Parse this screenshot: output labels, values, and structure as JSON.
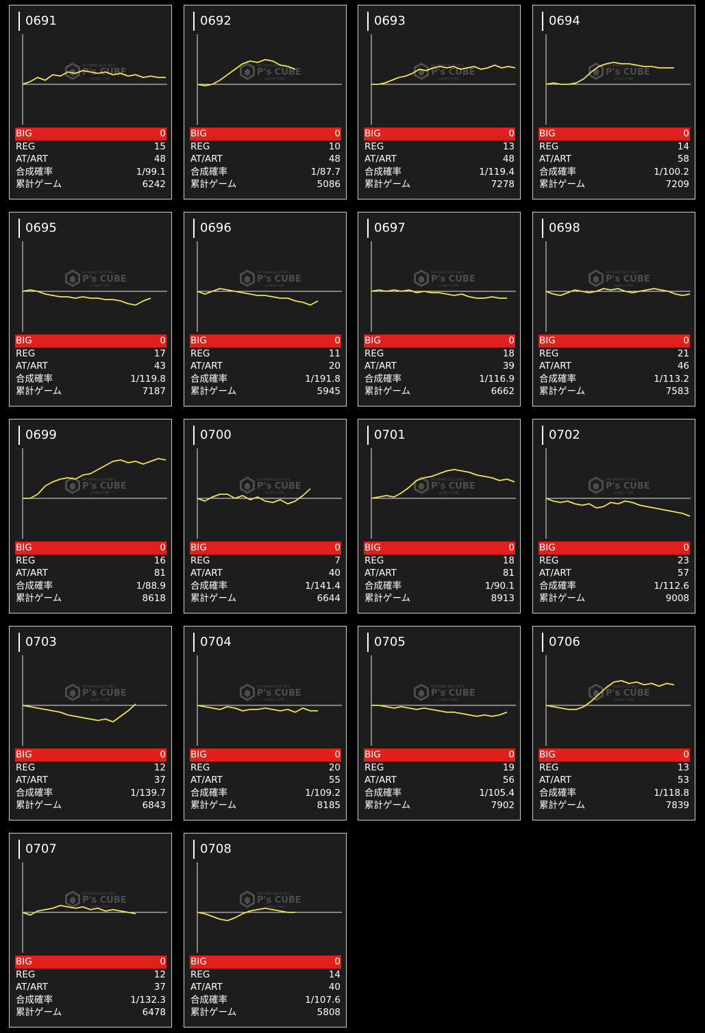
{
  "colors": {
    "background": "#000000",
    "card": "#1d1d1d",
    "border": "#d0d0d0",
    "big_row": "#e0201c",
    "line": "#f2e35a",
    "axis": "#e6e6e6"
  },
  "labels": {
    "big": "BIG",
    "reg": "REG",
    "at": "AT/ART",
    "prob": "合成確率",
    "games": "累計ゲーム"
  },
  "watermark": {
    "top": "PACHINKO SLOT INFO",
    "main": "P's CUBE",
    "sub": "pslabo CUBE"
  },
  "chart_data": [
    {
      "type": "line",
      "title": "0691",
      "big": "0",
      "reg": "15",
      "at": "48",
      "prob": "1/99.1",
      "games": "6242",
      "values": [
        0,
        2,
        5,
        3,
        7,
        6,
        9,
        8,
        10,
        9,
        8,
        9,
        7,
        8,
        6,
        7,
        5,
        6,
        5,
        5
      ]
    },
    {
      "type": "line",
      "title": "0692",
      "big": "0",
      "reg": "10",
      "at": "48",
      "prob": "1/87.7",
      "games": "5086",
      "values": [
        0,
        -1,
        0,
        3,
        7,
        11,
        15,
        17,
        16,
        18,
        17,
        14,
        13,
        11
      ]
    },
    {
      "type": "line",
      "title": "0693",
      "big": "0",
      "reg": "13",
      "at": "48",
      "prob": "1/119.4",
      "games": "7278",
      "values": [
        0,
        0,
        1,
        3,
        5,
        6,
        8,
        11,
        10,
        12,
        13,
        12,
        13,
        11,
        12,
        13,
        11,
        12,
        14,
        12,
        13,
        12
      ]
    },
    {
      "type": "line",
      "title": "0694",
      "big": "0",
      "reg": "14",
      "at": "58",
      "prob": "1/100.2",
      "games": "7209",
      "values": [
        0,
        1,
        0,
        0,
        1,
        4,
        9,
        13,
        15,
        16,
        15,
        15,
        14,
        13,
        13,
        12,
        12,
        12
      ]
    },
    {
      "type": "line",
      "title": "0695",
      "big": "0",
      "reg": "17",
      "at": "43",
      "prob": "1/119.8",
      "games": "7187",
      "values": [
        0,
        1,
        0,
        -2,
        -3,
        -4,
        -4,
        -5,
        -4,
        -5,
        -5,
        -6,
        -6,
        -7,
        -9,
        -10,
        -7,
        -5
      ]
    },
    {
      "type": "line",
      "title": "0696",
      "big": "0",
      "reg": "11",
      "at": "20",
      "prob": "1/191.8",
      "games": "5945",
      "values": [
        0,
        -2,
        0,
        2,
        1,
        0,
        -1,
        -2,
        -3,
        -3,
        -4,
        -5,
        -5,
        -7,
        -8,
        -10,
        -7
      ]
    },
    {
      "type": "line",
      "title": "0697",
      "big": "0",
      "reg": "18",
      "at": "39",
      "prob": "1/116.9",
      "games": "6662",
      "values": [
        0,
        1,
        0,
        1,
        0,
        1,
        -1,
        0,
        -1,
        -1,
        -2,
        -3,
        -2,
        -4,
        -5,
        -5,
        -4,
        -5,
        -5
      ]
    },
    {
      "type": "line",
      "title": "0698",
      "big": "0",
      "reg": "21",
      "at": "46",
      "prob": "1/113.2",
      "games": "7583",
      "values": [
        0,
        -2,
        -3,
        -1,
        1,
        0,
        -1,
        0,
        2,
        1,
        2,
        0,
        -1,
        0,
        1,
        2,
        1,
        0,
        -2,
        -3,
        -2
      ]
    },
    {
      "type": "line",
      "title": "0699",
      "big": "0",
      "reg": "16",
      "at": "81",
      "prob": "1/88.9",
      "games": "8618",
      "values": [
        0,
        0,
        3,
        9,
        12,
        14,
        15,
        14,
        17,
        18,
        21,
        24,
        27,
        28,
        26,
        27,
        25,
        27,
        29,
        28
      ]
    },
    {
      "type": "line",
      "title": "0700",
      "big": "0",
      "reg": "7",
      "at": "40",
      "prob": "1/141.4",
      "games": "6644",
      "values": [
        0,
        -2,
        1,
        3,
        3,
        0,
        2,
        -1,
        1,
        -2,
        -3,
        -1,
        -4,
        -2,
        2,
        7
      ]
    },
    {
      "type": "line",
      "title": "0701",
      "big": "0",
      "reg": "18",
      "at": "81",
      "prob": "1/90.1",
      "games": "8913",
      "values": [
        0,
        1,
        2,
        1,
        4,
        8,
        13,
        15,
        16,
        18,
        20,
        21,
        20,
        19,
        17,
        16,
        15,
        13,
        14,
        12
      ]
    },
    {
      "type": "line",
      "title": "0702",
      "big": "0",
      "reg": "23",
      "at": "57",
      "prob": "1/112.6",
      "games": "9008",
      "values": [
        0,
        -2,
        -3,
        -2,
        -4,
        -5,
        -4,
        -7,
        -6,
        -3,
        -4,
        -2,
        -3,
        -5,
        -6,
        -7,
        -8,
        -9,
        -10,
        -11,
        -13
      ]
    },
    {
      "type": "line",
      "title": "0703",
      "big": "0",
      "reg": "12",
      "at": "37",
      "prob": "1/139.7",
      "games": "6843",
      "values": [
        0,
        -1,
        -2,
        -3,
        -4,
        -5,
        -7,
        -8,
        -9,
        -10,
        -11,
        -10,
        -12,
        -8,
        -4,
        1
      ]
    },
    {
      "type": "line",
      "title": "0704",
      "big": "0",
      "reg": "20",
      "at": "55",
      "prob": "1/109.2",
      "games": "8185",
      "values": [
        0,
        -1,
        -2,
        -3,
        -1,
        -2,
        -4,
        -3,
        -3,
        -2,
        -3,
        -4,
        -3,
        -5,
        -2,
        -4,
        -4
      ]
    },
    {
      "type": "line",
      "title": "0705",
      "big": "0",
      "reg": "19",
      "at": "56",
      "prob": "1/105.4",
      "games": "7902",
      "values": [
        0,
        0,
        -1,
        -2,
        -1,
        -2,
        -3,
        -2,
        -3,
        -4,
        -5,
        -5,
        -6,
        -7,
        -8,
        -7,
        -8,
        -7,
        -5
      ]
    },
    {
      "type": "line",
      "title": "0706",
      "big": "0",
      "reg": "13",
      "at": "53",
      "prob": "1/118.8",
      "games": "7839",
      "values": [
        0,
        -1,
        -2,
        -3,
        -3,
        -1,
        3,
        8,
        13,
        17,
        18,
        16,
        17,
        15,
        16,
        14,
        16,
        15
      ]
    },
    {
      "type": "line",
      "title": "0707",
      "big": "0",
      "reg": "12",
      "at": "37",
      "prob": "1/132.3",
      "games": "6478",
      "values": [
        0,
        -2,
        1,
        2,
        3,
        5,
        4,
        3,
        4,
        2,
        3,
        1,
        2,
        1,
        0,
        -1
      ]
    },
    {
      "type": "line",
      "title": "0708",
      "big": "0",
      "reg": "14",
      "at": "40",
      "prob": "1/107.6",
      "games": "5808",
      "values": [
        0,
        -1,
        -3,
        -5,
        -6,
        -4,
        -1,
        1,
        2,
        3,
        2,
        1,
        0,
        0
      ]
    }
  ]
}
